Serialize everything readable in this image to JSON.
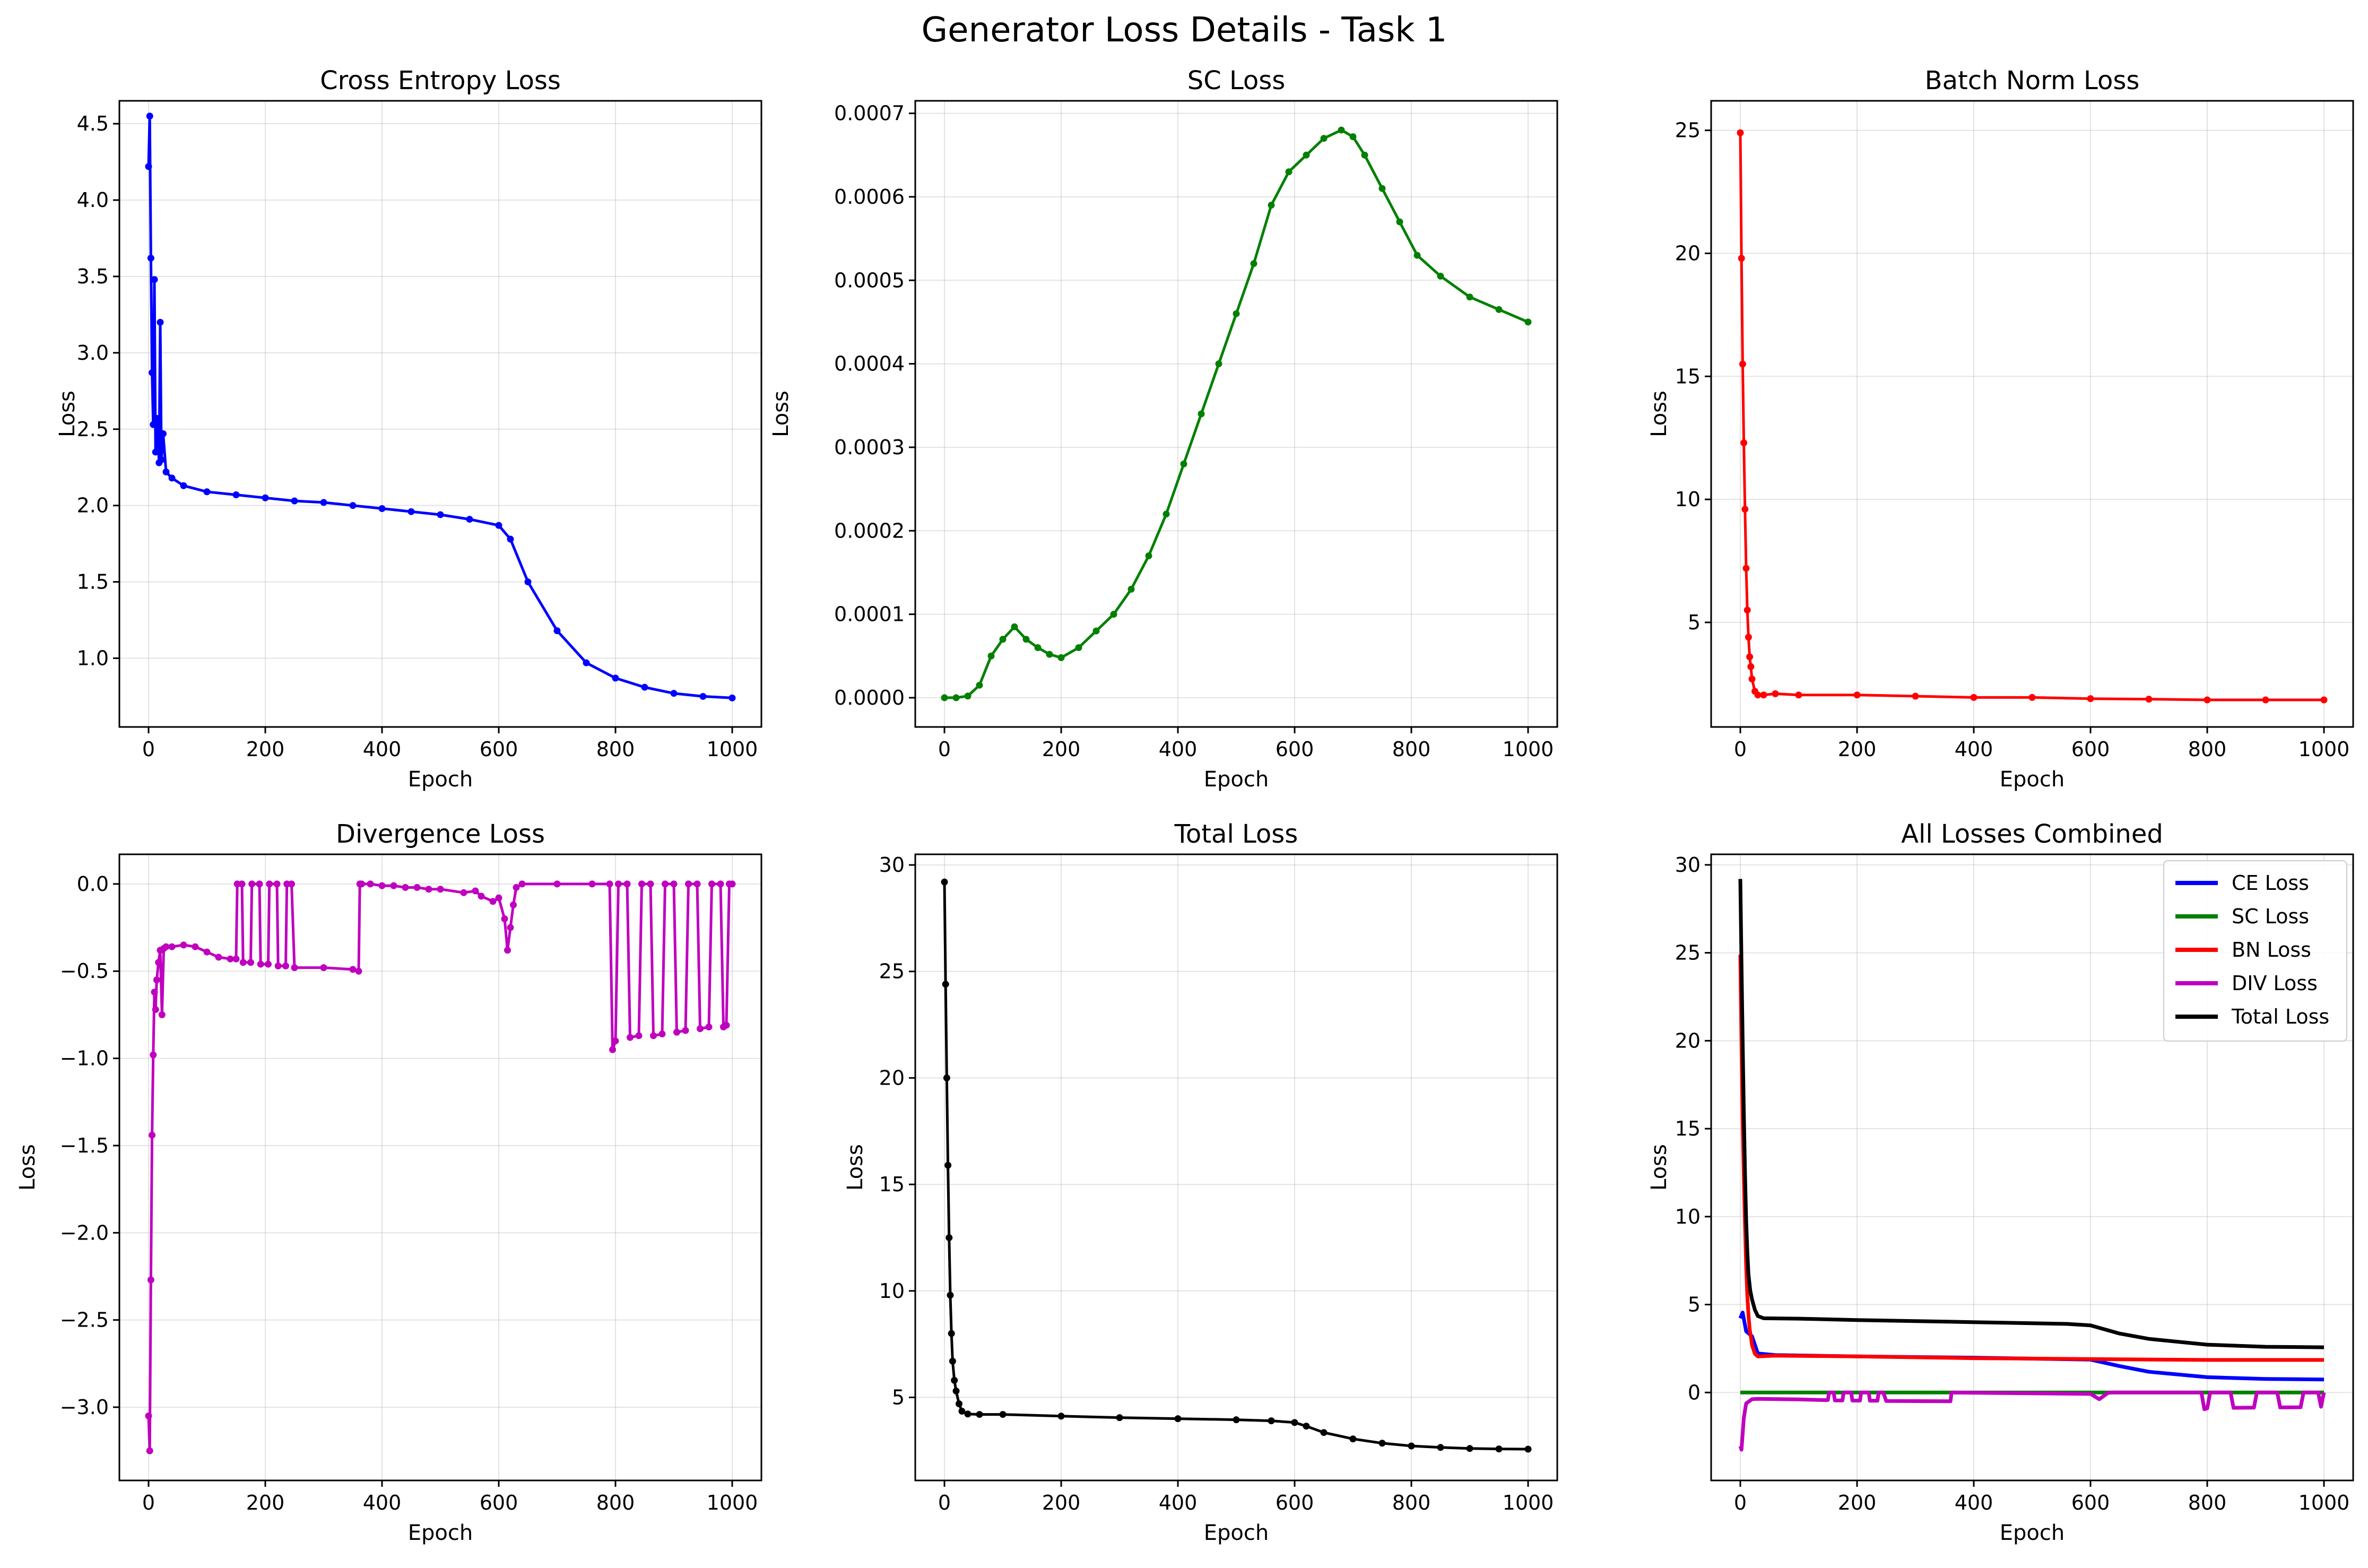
{
  "figure": {
    "title": "Generator Loss Details - Task 1"
  },
  "chart_data": [
    {
      "type": "line",
      "title": "Cross Entropy Loss",
      "xlabel": "Epoch",
      "ylabel": "Loss",
      "xlim": [
        -50,
        1050
      ],
      "ylim": [
        0.55,
        4.65
      ],
      "xticks": [
        0,
        200,
        400,
        600,
        800,
        1000
      ],
      "yticks": [
        1.0,
        1.5,
        2.0,
        2.5,
        3.0,
        3.5,
        4.0,
        4.5
      ],
      "ytick_labels": [
        "1.0",
        "1.5",
        "2.0",
        "2.5",
        "3.0",
        "3.5",
        "4.0",
        "4.5"
      ],
      "grid": true,
      "markers": true,
      "series": [
        {
          "color": "#0000ff",
          "x": [
            0,
            2,
            4,
            6,
            8,
            10,
            12,
            15,
            18,
            20,
            22,
            25,
            30,
            40,
            60,
            100,
            150,
            200,
            250,
            300,
            350,
            400,
            450,
            500,
            550,
            600,
            620,
            650,
            700,
            750,
            800,
            850,
            900,
            950,
            1000
          ],
          "y": [
            4.22,
            4.55,
            3.62,
            2.87,
            2.53,
            3.48,
            2.35,
            2.57,
            2.28,
            3.2,
            2.3,
            2.47,
            2.22,
            2.18,
            2.13,
            2.09,
            2.07,
            2.05,
            2.03,
            2.02,
            2.0,
            1.98,
            1.96,
            1.94,
            1.91,
            1.87,
            1.78,
            1.5,
            1.18,
            0.97,
            0.87,
            0.81,
            0.77,
            0.75,
            0.74
          ]
        }
      ]
    },
    {
      "type": "line",
      "title": "SC Loss",
      "xlabel": "Epoch",
      "ylabel": "Loss",
      "xlim": [
        -50,
        1050
      ],
      "ylim": [
        -3.5e-05,
        0.000715
      ],
      "xticks": [
        0,
        200,
        400,
        600,
        800,
        1000
      ],
      "yticks": [
        0,
        0.0001,
        0.0002,
        0.0003,
        0.0004,
        0.0005,
        0.0006,
        0.0007
      ],
      "ytick_labels": [
        "0.0000",
        "0.0001",
        "0.0002",
        "0.0003",
        "0.0004",
        "0.0005",
        "0.0006",
        "0.0007"
      ],
      "grid": true,
      "markers": true,
      "series": [
        {
          "color": "#008000",
          "x": [
            0,
            20,
            40,
            60,
            80,
            100,
            120,
            140,
            160,
            180,
            200,
            230,
            260,
            290,
            320,
            350,
            380,
            410,
            440,
            470,
            500,
            530,
            560,
            590,
            620,
            650,
            680,
            700,
            720,
            750,
            780,
            810,
            850,
            900,
            950,
            1000
          ],
          "y": [
            0.0,
            0.0,
            2e-06,
            1.5e-05,
            5e-05,
            7e-05,
            8.5e-05,
            7e-05,
            6e-05,
            5.2e-05,
            4.8e-05,
            6e-05,
            8e-05,
            0.0001,
            0.00013,
            0.00017,
            0.00022,
            0.00028,
            0.00034,
            0.0004,
            0.00046,
            0.00052,
            0.00059,
            0.00063,
            0.00065,
            0.00067,
            0.00068,
            0.000672,
            0.00065,
            0.00061,
            0.00057,
            0.00053,
            0.000505,
            0.00048,
            0.000465,
            0.00045
          ]
        }
      ]
    },
    {
      "type": "line",
      "title": "Batch Norm Loss",
      "xlabel": "Epoch",
      "ylabel": "Loss",
      "xlim": [
        -50,
        1050
      ],
      "ylim": [
        0.75,
        26.2
      ],
      "xticks": [
        0,
        200,
        400,
        600,
        800,
        1000
      ],
      "yticks": [
        5,
        10,
        15,
        20,
        25
      ],
      "ytick_labels": [
        "5",
        "10",
        "15",
        "20",
        "25"
      ],
      "grid": true,
      "markers": true,
      "series": [
        {
          "color": "#ff0000",
          "x": [
            0,
            2,
            4,
            6,
            8,
            10,
            12,
            14,
            16,
            18,
            20,
            25,
            30,
            40,
            60,
            100,
            200,
            300,
            400,
            500,
            600,
            700,
            800,
            900,
            1000
          ],
          "y": [
            24.9,
            19.8,
            15.5,
            12.3,
            9.6,
            7.2,
            5.5,
            4.4,
            3.6,
            3.2,
            2.7,
            2.2,
            2.05,
            2.05,
            2.1,
            2.05,
            2.05,
            2.0,
            1.95,
            1.95,
            1.9,
            1.88,
            1.85,
            1.85,
            1.85
          ]
        }
      ]
    },
    {
      "type": "line",
      "title": "Divergence Loss",
      "xlabel": "Epoch",
      "ylabel": "Loss",
      "xlim": [
        -50,
        1050
      ],
      "ylim": [
        -3.42,
        0.17
      ],
      "xticks": [
        0,
        200,
        400,
        600,
        800,
        1000
      ],
      "yticks": [
        -3.0,
        -2.5,
        -2.0,
        -1.5,
        -1.0,
        -0.5,
        0.0
      ],
      "ytick_labels": [
        "−3.0",
        "−2.5",
        "−2.0",
        "−1.5",
        "−1.0",
        "−0.5",
        "0.0"
      ],
      "grid": true,
      "markers": true,
      "series": [
        {
          "color": "#bf00bf",
          "x": [
            0,
            2,
            4,
            6,
            8,
            10,
            12,
            14,
            17,
            20,
            23,
            26,
            30,
            40,
            60,
            80,
            100,
            120,
            140,
            150,
            152,
            160,
            162,
            175,
            177,
            190,
            192,
            205,
            207,
            220,
            222,
            235,
            237,
            245,
            250,
            300,
            350,
            360,
            362,
            365,
            380,
            400,
            420,
            440,
            460,
            480,
            500,
            540,
            560,
            570,
            590,
            600,
            610,
            615,
            620,
            625,
            630,
            640,
            700,
            760,
            790,
            795,
            800,
            805,
            820,
            825,
            840,
            845,
            860,
            865,
            880,
            885,
            900,
            905,
            920,
            925,
            940,
            945,
            960,
            965,
            980,
            985,
            990,
            995,
            1000
          ],
          "y": [
            -3.05,
            -3.25,
            -2.27,
            -1.44,
            -0.98,
            -0.62,
            -0.72,
            -0.55,
            -0.45,
            -0.38,
            -0.75,
            -0.37,
            -0.36,
            -0.36,
            -0.35,
            -0.36,
            -0.39,
            -0.42,
            -0.43,
            -0.43,
            0.0,
            0.0,
            -0.45,
            -0.45,
            0.0,
            0.0,
            -0.46,
            -0.46,
            0.0,
            0.0,
            -0.47,
            -0.47,
            0.0,
            0.0,
            -0.48,
            -0.48,
            -0.49,
            -0.5,
            0.0,
            0.0,
            0.0,
            -0.01,
            -0.01,
            -0.02,
            -0.02,
            -0.03,
            -0.03,
            -0.05,
            -0.04,
            -0.07,
            -0.1,
            -0.08,
            -0.2,
            -0.38,
            -0.25,
            -0.12,
            -0.02,
            0.0,
            0.0,
            0.0,
            0.0,
            -0.95,
            -0.9,
            0.0,
            0.0,
            -0.88,
            -0.87,
            0.0,
            0.0,
            -0.87,
            -0.86,
            0.0,
            0.0,
            -0.85,
            -0.84,
            0.0,
            0.0,
            -0.83,
            -0.82,
            0.0,
            0.0,
            -0.82,
            -0.81,
            0.0,
            0.0
          ]
        }
      ]
    },
    {
      "type": "line",
      "title": "Total Loss",
      "xlabel": "Epoch",
      "ylabel": "Loss",
      "xlim": [
        -50,
        1050
      ],
      "ylim": [
        1.1,
        30.5
      ],
      "xticks": [
        0,
        200,
        400,
        600,
        800,
        1000
      ],
      "yticks": [
        5,
        10,
        15,
        20,
        25,
        30
      ],
      "ytick_labels": [
        "5",
        "10",
        "15",
        "20",
        "25",
        "30"
      ],
      "grid": true,
      "markers": true,
      "series": [
        {
          "color": "#000000",
          "x": [
            0,
            2,
            4,
            6,
            8,
            10,
            12,
            14,
            17,
            20,
            25,
            30,
            40,
            60,
            100,
            200,
            300,
            400,
            500,
            560,
            600,
            620,
            650,
            700,
            750,
            800,
            850,
            900,
            950,
            1000
          ],
          "y": [
            29.2,
            24.4,
            20.0,
            15.9,
            12.5,
            9.8,
            8.0,
            6.7,
            5.8,
            5.3,
            4.7,
            4.35,
            4.22,
            4.2,
            4.2,
            4.12,
            4.05,
            4.0,
            3.95,
            3.9,
            3.82,
            3.65,
            3.35,
            3.05,
            2.85,
            2.72,
            2.65,
            2.6,
            2.58,
            2.57
          ]
        }
      ]
    },
    {
      "type": "line",
      "title": "All Losses Combined",
      "xlabel": "Epoch",
      "ylabel": "Loss",
      "xlim": [
        -50,
        1050
      ],
      "ylim": [
        -5.0,
        30.6
      ],
      "xticks": [
        0,
        200,
        400,
        600,
        800,
        1000
      ],
      "yticks": [
        0,
        5,
        10,
        15,
        20,
        25,
        30
      ],
      "ytick_labels": [
        "0",
        "5",
        "10",
        "15",
        "20",
        "25",
        "30"
      ],
      "grid": true,
      "markers": false,
      "legend": "top-right",
      "series": [
        {
          "name": "CE Loss",
          "color": "#0000ff",
          "x": [
            0,
            4,
            10,
            20,
            30,
            60,
            200,
            400,
            600,
            650,
            700,
            800,
            900,
            1000
          ],
          "y": [
            4.22,
            4.55,
            3.48,
            3.2,
            2.22,
            2.13,
            2.05,
            1.98,
            1.87,
            1.5,
            1.18,
            0.87,
            0.77,
            0.74
          ]
        },
        {
          "name": "SC Loss",
          "color": "#008000",
          "x": [
            0,
            500,
            1000
          ],
          "y": [
            0.0,
            0.0005,
            0.00045
          ]
        },
        {
          "name": "BN Loss",
          "color": "#ff0000",
          "x": [
            0,
            2,
            4,
            6,
            8,
            10,
            12,
            14,
            16,
            18,
            20,
            25,
            30,
            60,
            200,
            400,
            600,
            800,
            1000
          ],
          "y": [
            24.9,
            19.8,
            15.5,
            12.3,
            9.6,
            7.2,
            5.5,
            4.4,
            3.6,
            3.2,
            2.7,
            2.2,
            2.05,
            2.1,
            2.05,
            1.95,
            1.9,
            1.85,
            1.85
          ]
        },
        {
          "name": "DIV Loss",
          "color": "#bf00bf",
          "x": [
            0,
            2,
            6,
            10,
            20,
            30,
            100,
            140,
            150,
            152,
            160,
            162,
            175,
            177,
            190,
            192,
            205,
            207,
            220,
            222,
            235,
            237,
            245,
            250,
            360,
            362,
            365,
            600,
            615,
            630,
            640,
            790,
            795,
            800,
            805,
            840,
            845,
            880,
            885,
            920,
            925,
            960,
            965,
            990,
            995,
            1000
          ],
          "y": [
            -3.05,
            -3.25,
            -1.44,
            -0.62,
            -0.38,
            -0.36,
            -0.39,
            -0.43,
            -0.43,
            0.0,
            0.0,
            -0.45,
            -0.45,
            0.0,
            0.0,
            -0.46,
            -0.46,
            0.0,
            0.0,
            -0.47,
            -0.47,
            0.0,
            0.0,
            -0.48,
            -0.5,
            0.0,
            0.0,
            -0.08,
            -0.38,
            -0.02,
            0.0,
            0.0,
            -0.95,
            -0.9,
            0.0,
            0.0,
            -0.87,
            -0.86,
            0.0,
            0.0,
            -0.85,
            -0.84,
            0.0,
            0.0,
            -0.81,
            0.0
          ]
        },
        {
          "name": "Total Loss",
          "color": "#000000",
          "x": [
            0,
            2,
            4,
            6,
            8,
            10,
            12,
            14,
            17,
            20,
            25,
            30,
            40,
            100,
            200,
            400,
            560,
            600,
            650,
            700,
            800,
            900,
            1000
          ],
          "y": [
            29.2,
            24.4,
            20.0,
            15.9,
            12.5,
            9.8,
            8.0,
            6.7,
            5.8,
            5.3,
            4.7,
            4.35,
            4.22,
            4.2,
            4.12,
            4.0,
            3.9,
            3.82,
            3.35,
            3.05,
            2.72,
            2.6,
            2.57
          ]
        }
      ]
    }
  ]
}
